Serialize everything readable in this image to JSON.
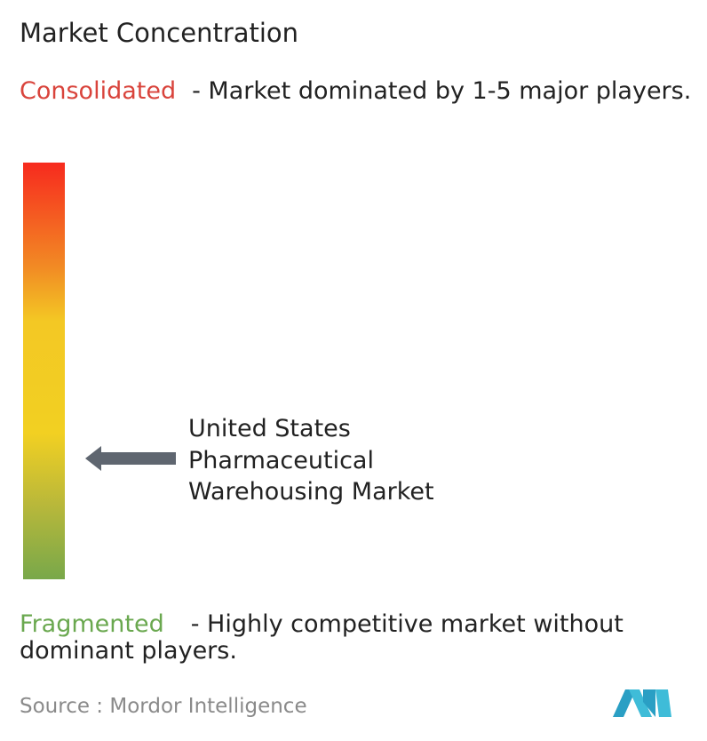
{
  "header": {
    "title": "Market Concentration"
  },
  "consolidated": {
    "label": "Consolidated",
    "description": "- Market dominated by 1-5 major players."
  },
  "market_label": {
    "lines": [
      "United States",
      "Pharmaceutical",
      "Warehousing Market"
    ]
  },
  "fragmented": {
    "label": "Fragmented",
    "description": "- Highly competitive market without dominant players."
  },
  "source": {
    "prefix": "Source :",
    "name": "Mordor Intelligence"
  }
}
